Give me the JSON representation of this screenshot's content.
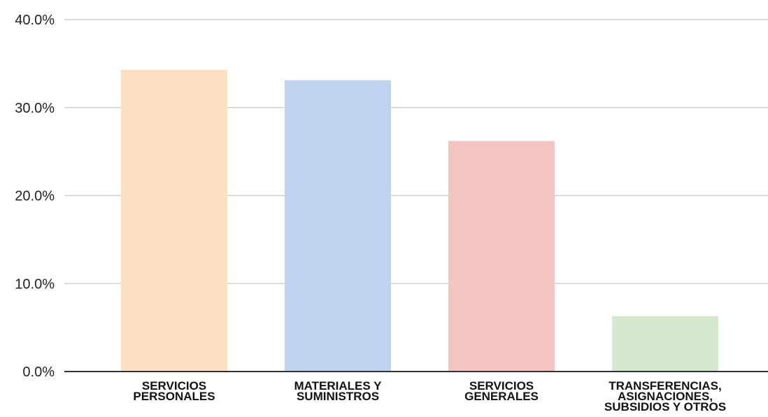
{
  "chart_data": {
    "type": "bar",
    "title": "",
    "xlabel": "",
    "ylabel": "",
    "ylim": [
      0,
      40
    ],
    "y_ticks": [
      {
        "value": 0,
        "label": "0.0%"
      },
      {
        "value": 10,
        "label": "10.0%"
      },
      {
        "value": 20,
        "label": "20.0%"
      },
      {
        "value": 30,
        "label": "30.0%"
      },
      {
        "value": 40,
        "label": "40.0%"
      }
    ],
    "grid": true,
    "categories": [
      [
        "SERVICIOS",
        "PERSONALES"
      ],
      [
        "MATERIALES Y",
        "SUMINISTROS"
      ],
      [
        "SERVICIOS",
        "GENERALES"
      ],
      [
        "TRANSFERENCIAS,",
        "ASIGNACIONES,",
        "SUBSIDIOS Y OTROS"
      ]
    ],
    "values": [
      34.3,
      33.1,
      26.2,
      6.3
    ],
    "colors": [
      "#fce0c4",
      "#bfd2ee",
      "#f3c4c2",
      "#d3e8cf"
    ]
  }
}
